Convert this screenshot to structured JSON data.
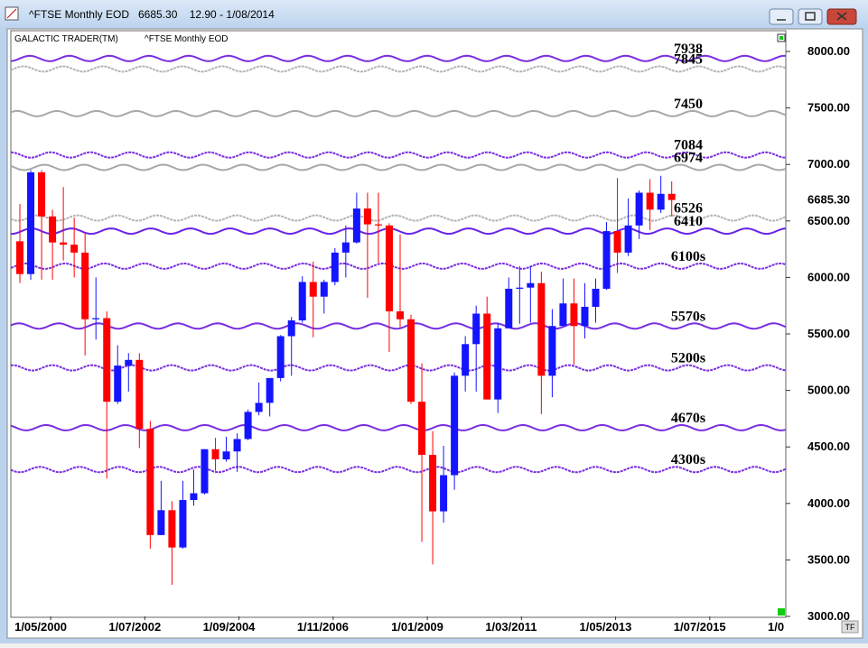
{
  "window_title": "^FTSE Monthly EOD   6685.30    12.90 - 1/08/2014",
  "chart_data": {
    "type": "candlestick",
    "legend": [
      "GALACTIC TRADER(TM)",
      "^FTSE Monthly EOD"
    ],
    "last_label": "6685.30",
    "corner_label": "TF",
    "up_color": "#1414ff",
    "down_color": "#ff0000",
    "x": [
      "1/07/1999",
      "1/10/1999",
      "1/01/2000",
      "1/04/2000",
      "1/07/2000",
      "1/10/2000",
      "1/01/2001",
      "1/04/2001",
      "1/07/2001",
      "1/10/2001",
      "1/01/2002",
      "1/04/2002",
      "1/07/2002",
      "1/10/2002",
      "1/01/2003",
      "1/04/2003",
      "1/07/2003",
      "1/10/2003",
      "1/01/2004",
      "1/04/2004",
      "1/07/2004",
      "1/10/2004",
      "1/01/2005",
      "1/04/2005",
      "1/07/2005",
      "1/10/2005",
      "1/01/2006",
      "1/04/2006",
      "1/07/2006",
      "1/10/2006",
      "1/01/2007",
      "1/04/2007",
      "1/07/2007",
      "1/10/2007",
      "1/01/2008",
      "1/04/2008",
      "1/07/2008",
      "1/10/2008",
      "1/01/2009",
      "1/04/2009",
      "1/07/2009",
      "1/10/2009",
      "1/01/2010",
      "1/04/2010",
      "1/07/2010",
      "1/10/2010",
      "1/01/2011",
      "1/04/2011",
      "1/07/2011",
      "1/10/2011",
      "1/01/2012",
      "1/04/2012",
      "1/07/2012",
      "1/10/2012",
      "1/01/2013",
      "1/04/2013",
      "1/07/2013",
      "1/10/2013",
      "1/01/2014",
      "1/04/2014",
      "1/07/2014"
    ],
    "open": [
      6320,
      6030,
      6930,
      6540,
      6310,
      6290,
      6220,
      5630,
      5640,
      4900,
      5220,
      5270,
      4660,
      3720,
      3940,
      3610,
      4030,
      4090,
      4480,
      4390,
      4460,
      4570,
      4810,
      4890,
      5110,
      5480,
      5620,
      5960,
      5830,
      5960,
      6220,
      6310,
      6610,
      6470,
      6460,
      5700,
      5630,
      4900,
      4430,
      3930,
      4250,
      5130,
      5410,
      5680,
      4920,
      5550,
      5900,
      5910,
      5950,
      5130,
      5570,
      5770,
      5570,
      5740,
      5900,
      6410,
      6220,
      6460,
      6750,
      6600,
      6740
    ],
    "high": [
      6650,
      6950,
      6950,
      6600,
      6800,
      6530,
      6400,
      6000,
      5700,
      5400,
      5330,
      5330,
      4730,
      4200,
      4020,
      4200,
      4300,
      4480,
      4580,
      4590,
      4620,
      4830,
      5070,
      5080,
      5490,
      5650,
      6010,
      6140,
      5980,
      6260,
      6460,
      6750,
      6750,
      6750,
      6480,
      6380,
      5670,
      5240,
      4640,
      4510,
      5160,
      5480,
      5750,
      5830,
      5600,
      6000,
      6100,
      6100,
      6050,
      5720,
      5990,
      5990,
      5950,
      5990,
      6490,
      6880,
      6700,
      6770,
      6870,
      6900,
      6850
    ],
    "low": [
      5950,
      5980,
      5980,
      5980,
      6150,
      6000,
      5310,
      5450,
      4220,
      4880,
      4990,
      4490,
      3600,
      3720,
      3280,
      3600,
      3980,
      4080,
      4290,
      4370,
      4280,
      4560,
      4780,
      4770,
      5080,
      5130,
      5600,
      5470,
      5680,
      5930,
      6000,
      6300,
      5820,
      6130,
      5340,
      5560,
      4880,
      3660,
      3460,
      3830,
      4120,
      4990,
      4990,
      4940,
      4800,
      5550,
      5590,
      5600,
      4790,
      4940,
      5570,
      5230,
      5460,
      5600,
      5890,
      6040,
      6190,
      6340,
      6420,
      6570,
      6540
    ],
    "close": [
      6030,
      6930,
      6540,
      6310,
      6290,
      6220,
      5630,
      5640,
      4900,
      5220,
      5270,
      4660,
      3720,
      3940,
      3610,
      4030,
      4090,
      4480,
      4390,
      4460,
      4570,
      4810,
      4890,
      5110,
      5480,
      5620,
      5960,
      5830,
      5960,
      6220,
      6310,
      6610,
      6470,
      6460,
      5700,
      5630,
      4900,
      4430,
      3930,
      4250,
      5130,
      5410,
      5680,
      4920,
      5550,
      5900,
      5910,
      5950,
      5130,
      5570,
      5770,
      5570,
      5740,
      5900,
      6410,
      6220,
      6460,
      6750,
      6600,
      6740,
      6685.3
    ],
    "xlim": [
      "1/06/1999",
      "1/04/2017"
    ],
    "xticks": [
      "1/05/2000",
      "1/07/2002",
      "1/09/2004",
      "1/11/2006",
      "1/01/2009",
      "1/03/2011",
      "1/05/2013",
      "1/07/2015",
      {
        "value": "1/09/2017",
        "label": "1/0"
      }
    ],
    "ylim": [
      3000,
      8184
    ],
    "yticks": [
      {
        "value": 3000,
        "label": "3000.00"
      },
      {
        "value": 3500,
        "label": "3500.00"
      },
      {
        "value": 4000,
        "label": "4000.00"
      },
      {
        "value": 4500,
        "label": "4500.00"
      },
      {
        "value": 5000,
        "label": "5000.00"
      },
      {
        "value": 5500,
        "label": "5500.00"
      },
      {
        "value": 6000,
        "label": "6000.00"
      },
      {
        "value": 6500,
        "label": "6500.00"
      },
      {
        "value": 7000,
        "label": "7000.00"
      },
      {
        "value": 7500,
        "label": "7500.00"
      },
      {
        "value": 8000,
        "label": "8000.00"
      }
    ],
    "levels": [
      {
        "value": 7938,
        "color": "#7a2ee0"
      },
      {
        "value": 7845,
        "color": "#b4b4b4"
      },
      {
        "value": 7450,
        "color": "#a8a8a8"
      },
      {
        "value": 7084,
        "color": "#7a2ee0"
      },
      {
        "value": 6974,
        "color": "#a8a8a8"
      },
      {
        "value": 6526,
        "color": "#b4b4b4"
      },
      {
        "value": 6410,
        "color": "#6a22e8"
      },
      {
        "value": 6100,
        "label": "6100s",
        "color": "#7a2ee0"
      },
      {
        "value": 5570,
        "label": "5570s",
        "color": "#7a2ee0"
      },
      {
        "value": 5200,
        "label": "5200s",
        "color": "#7a2ee0"
      },
      {
        "value": 4670,
        "label": "4670s",
        "color": "#7a2ee0"
      },
      {
        "value": 4300,
        "label": "4300s",
        "color": "#7a2ee0"
      }
    ]
  }
}
